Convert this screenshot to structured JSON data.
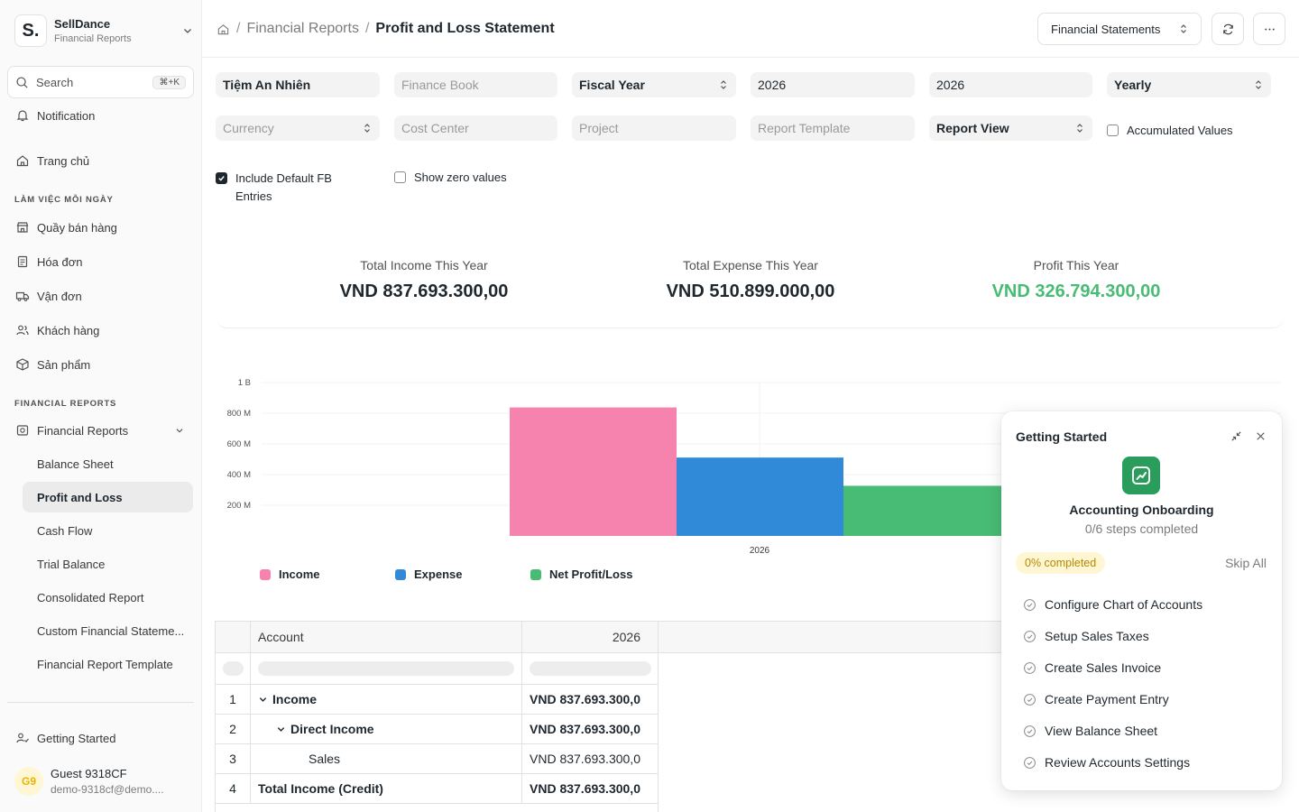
{
  "brand": {
    "logo_letter": "S.",
    "name": "SellDance",
    "subtitle": "Financial Reports"
  },
  "search": {
    "label": "Search",
    "shortcut": "⌘+K"
  },
  "sidebar": {
    "notification": "Notification",
    "home": "Trang chủ",
    "section_daily": "LÀM VIỆC MỖI NGÀY",
    "daily_items": [
      "Quầy bán hàng",
      "Hóa đơn",
      "Vận đơn",
      "Khách hàng",
      "Sản phẩm"
    ],
    "section_reports": "FINANCIAL REPORTS",
    "reports_group": "Financial Reports",
    "report_items": [
      "Balance Sheet",
      "Profit and Loss",
      "Cash Flow",
      "Trial Balance",
      "Consolidated Report",
      "Custom Financial Stateme...",
      "Financial Report Template"
    ],
    "active_report": "Profit and Loss",
    "getting_started": "Getting Started",
    "user": {
      "initials": "G9",
      "name": "Guest 9318CF",
      "email": "demo-9318cf@demo...."
    }
  },
  "header": {
    "breadcrumb_parent": "Financial Reports",
    "breadcrumb_current": "Profit and Loss Statement",
    "select_label": "Financial Statements"
  },
  "filters": {
    "company": "Tiệm An Nhiên",
    "finance_book_placeholder": "Finance Book",
    "period_based_on": "Fiscal Year",
    "from_year": "2026",
    "to_year": "2026",
    "periodicity": "Yearly",
    "currency_placeholder": "Currency",
    "cost_center_placeholder": "Cost Center",
    "project_placeholder": "Project",
    "report_template_placeholder": "Report Template",
    "report_view": "Report View",
    "accumulated_values": "Accumulated Values",
    "include_default_fb": "Include Default FB Entries",
    "show_zero_values": "Show zero values"
  },
  "summary": {
    "income_label": "Total Income This Year",
    "income_value": "VND 837.693.300,00",
    "expense_label": "Total Expense This Year",
    "expense_value": "VND 510.899.000,00",
    "profit_label": "Profit This Year",
    "profit_value": "VND 326.794.300,00",
    "profit_color": "#48bb74"
  },
  "chart_data": {
    "type": "bar",
    "categories": [
      "2026"
    ],
    "series": [
      {
        "name": "Income",
        "values": [
          837693300
        ],
        "color": "#f683ae"
      },
      {
        "name": "Expense",
        "values": [
          510899000
        ],
        "color": "#318ad8"
      },
      {
        "name": "Net Profit/Loss",
        "values": [
          326794300
        ],
        "color": "#48bb74"
      }
    ],
    "y_ticks": [
      "200 M",
      "400 M",
      "600 M",
      "800 M",
      "1 B"
    ],
    "ylim": [
      0,
      1000000000
    ],
    "grid": true,
    "legend_position": "bottom-left"
  },
  "table": {
    "headers": [
      "Account",
      "2026"
    ],
    "rows": [
      {
        "num": "1",
        "account": "Income",
        "value": "VND 837.693.300,0",
        "bold": true,
        "indent": 0,
        "chevron": true
      },
      {
        "num": "2",
        "account": "Direct Income",
        "value": "VND 837.693.300,0",
        "bold": true,
        "indent": 1,
        "chevron": true
      },
      {
        "num": "3",
        "account": "Sales",
        "value": "VND 837.693.300,0",
        "bold": false,
        "indent": 2,
        "chevron": false
      },
      {
        "num": "4",
        "account": "Total Income (Credit)",
        "value": "VND 837.693.300,0",
        "bold": true,
        "indent": 0,
        "chevron": false
      }
    ]
  },
  "onboarding": {
    "title": "Getting Started",
    "heading": "Accounting Onboarding",
    "steps_completed": "0/6 steps completed",
    "progress_label": "0% completed",
    "progress": 0,
    "skip_all": "Skip All",
    "steps": [
      "Configure Chart of Accounts",
      "Setup Sales Taxes",
      "Create Sales Invoice",
      "Create Payment Entry",
      "View Balance Sheet",
      "Review Accounts Settings"
    ]
  }
}
